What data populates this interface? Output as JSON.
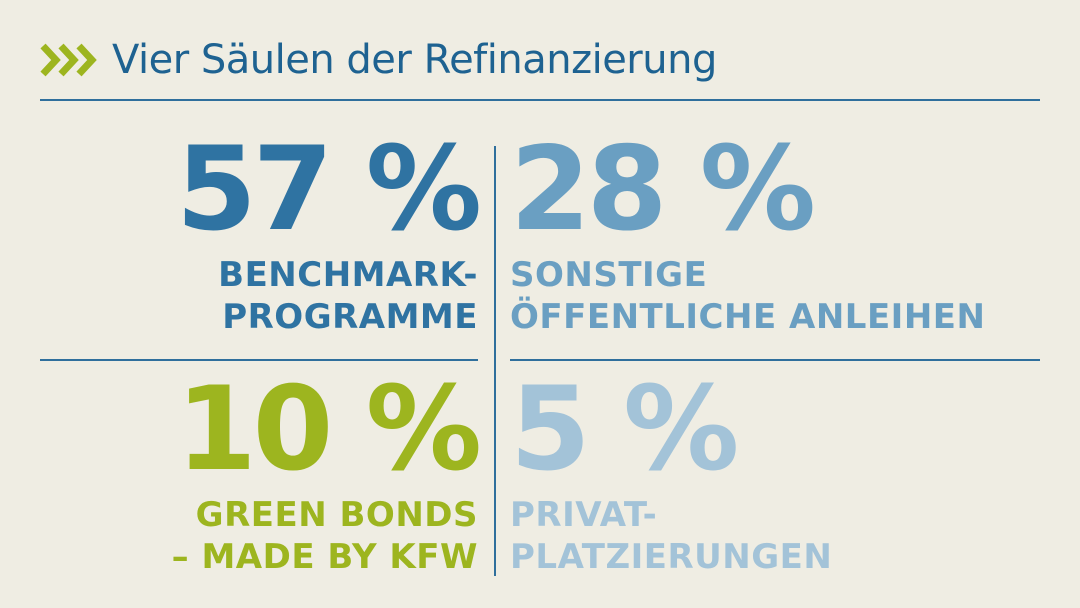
{
  "header": {
    "title": "Vier Säulen der Refinanzierung",
    "icon": "triple-chevron-icon",
    "icon_color": "#9db51f"
  },
  "pillars": [
    {
      "value": "57 %",
      "label_line1": "BENCHMARK-",
      "label_line2": "PROGRAMME",
      "color": "#2f73a2"
    },
    {
      "value": "28 %",
      "label_line1": "SONSTIGE",
      "label_line2": "ÖFFENTLICHE ANLEIHEN",
      "color": "#6a9fc2"
    },
    {
      "value": "10 %",
      "label_line1": "GREEN BONDS",
      "label_line2": "– MADE BY KFW",
      "color": "#9db51f"
    },
    {
      "value": "5 %",
      "label_line1": "PRIVAT-",
      "label_line2": "PLATZIERUNGEN",
      "color": "#a3c3d8"
    }
  ],
  "colors": {
    "background": "#efede3",
    "rule": "#2f6f9c",
    "title": "#1e6291"
  }
}
